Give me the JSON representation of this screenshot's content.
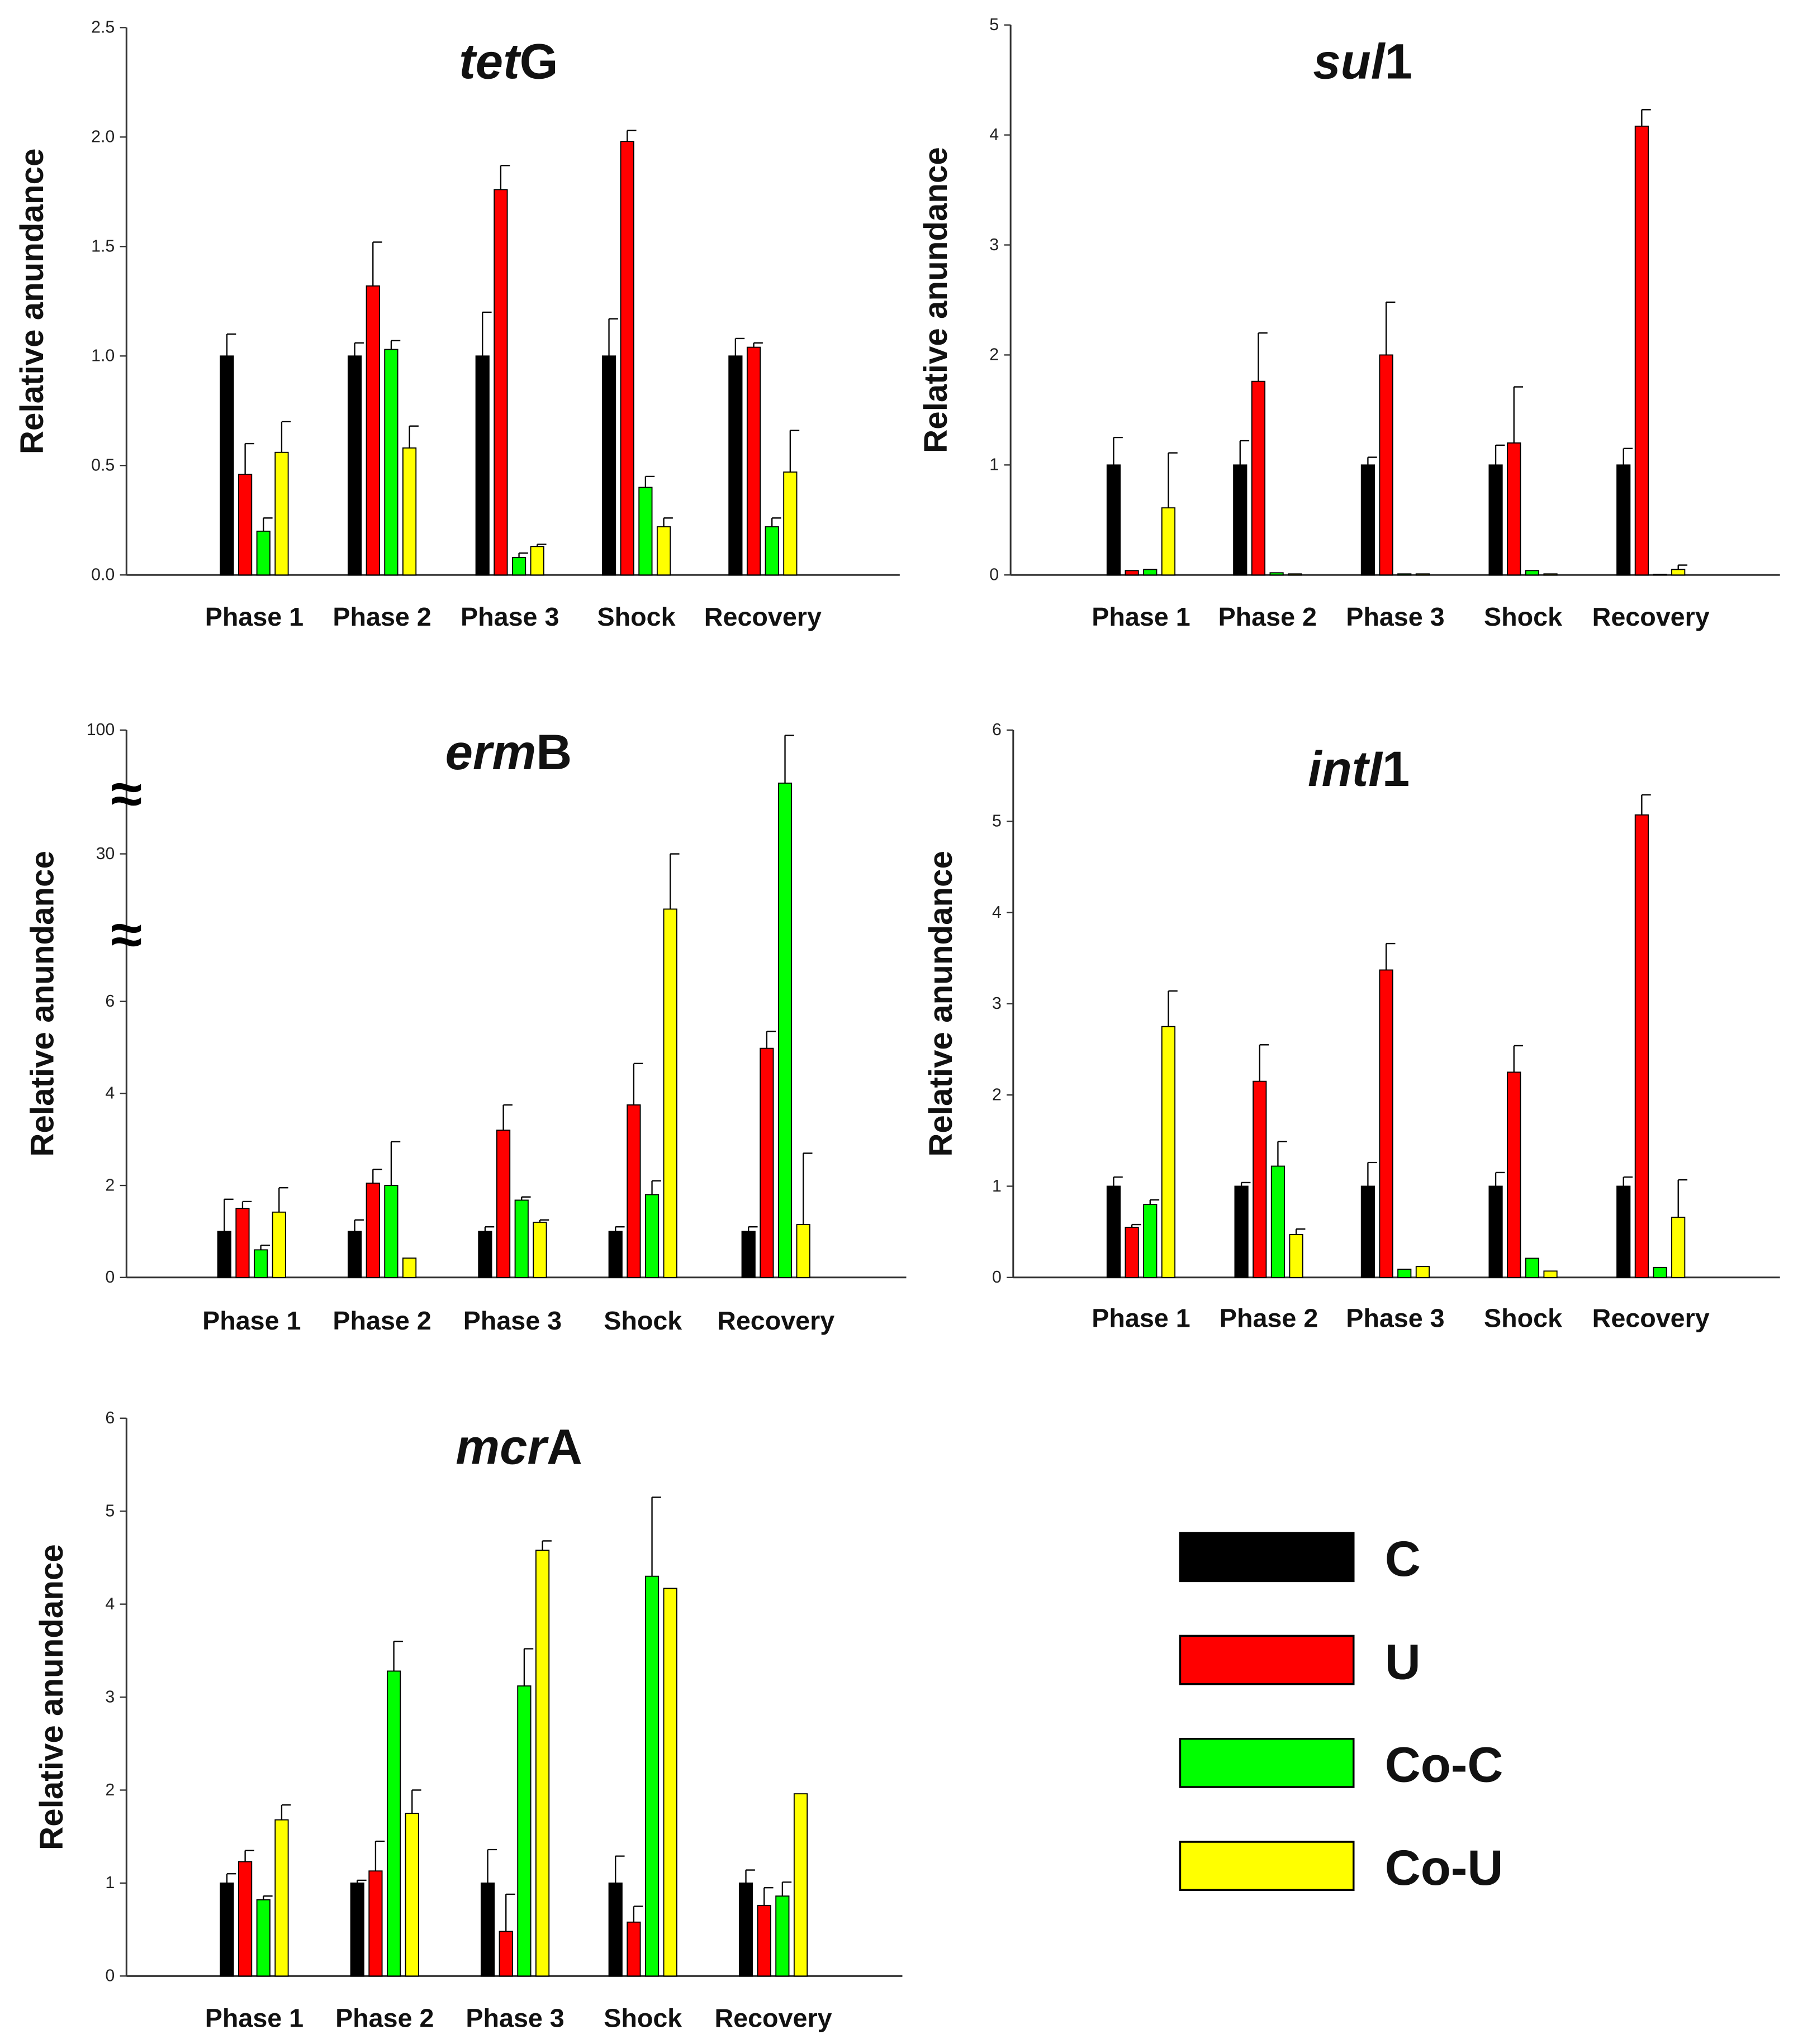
{
  "chart_data": [
    {
      "type": "bar",
      "title_italic": "tet",
      "title_rest": "G",
      "ylabel": "Relative anundance",
      "categories": [
        "Phase 1",
        "Phase 2",
        "Phase 3",
        "Shock",
        "Recovery"
      ],
      "ylim": [
        0,
        2.5
      ],
      "yticks": [
        "0.0",
        "0.5",
        "1.0",
        "1.5",
        "2.0",
        "2.5"
      ],
      "ytick_values": [
        0,
        0.5,
        1,
        1.5,
        2,
        2.5
      ],
      "series": [
        {
          "name": "C",
          "values": [
            1,
            1,
            1,
            1,
            1
          ],
          "err_top": [
            1.1,
            1.06,
            1.2,
            1.17,
            1.08
          ]
        },
        {
          "name": "U",
          "values": [
            0.46,
            1.32,
            1.76,
            1.98,
            1.04
          ],
          "err_top": [
            0.6,
            1.52,
            1.87,
            2.03,
            1.06
          ]
        },
        {
          "name": "Co-C",
          "values": [
            0.2,
            1.03,
            0.08,
            0.4,
            0.22
          ],
          "err_top": [
            0.26,
            1.07,
            0.1,
            0.45,
            0.26
          ]
        },
        {
          "name": "Co-U",
          "values": [
            0.56,
            0.58,
            0.13,
            0.22,
            0.47
          ],
          "err_top": [
            0.7,
            0.68,
            0.14,
            0.26,
            0.66
          ]
        }
      ]
    },
    {
      "type": "bar",
      "title_italic": "sul",
      "title_rest": "1",
      "ylabel": "Relative anundance",
      "categories": [
        "Phase 1",
        "Phase 2",
        "Phase 3",
        "Shock",
        "Recovery"
      ],
      "ylim": [
        0,
        5
      ],
      "yticks": [
        "0",
        "1",
        "2",
        "3",
        "4",
        "5"
      ],
      "ytick_values": [
        0,
        1,
        2,
        3,
        4,
        5
      ],
      "series": [
        {
          "name": "C",
          "values": [
            1,
            1,
            1,
            1,
            1
          ],
          "err_top": [
            1.25,
            1.22,
            1.07,
            1.18,
            1.15
          ]
        },
        {
          "name": "U",
          "values": [
            0.04,
            1.76,
            2.0,
            1.2,
            4.08
          ],
          "err_top": [
            0.04,
            2.2,
            2.48,
            1.71,
            4.23
          ]
        },
        {
          "name": "Co-C",
          "values": [
            0.05,
            0.02,
            0.01,
            0.04,
            0.0
          ],
          "err_top": [
            0.05,
            0.02,
            0.01,
            0.04,
            0.0
          ]
        },
        {
          "name": "Co-U",
          "values": [
            0.61,
            0.01,
            0.01,
            0.01,
            0.05
          ],
          "err_top": [
            1.11,
            0.01,
            0.01,
            0.01,
            0.09
          ]
        }
      ]
    },
    {
      "type": "bar",
      "title_italic": "erm",
      "title_rest": "B",
      "ylabel": "Relative anundance",
      "categories": [
        "Phase 1",
        "Phase 2",
        "Phase 3",
        "Shock",
        "Recovery"
      ],
      "ylim": [
        0,
        100
      ],
      "axis_break": true,
      "yticks": [
        "0",
        "2",
        "4",
        "6",
        "30",
        "100"
      ],
      "ytick_values": [
        0,
        2,
        4,
        6,
        30,
        100
      ],
      "series": [
        {
          "name": "C",
          "values": [
            1,
            1,
            1,
            1,
            1
          ],
          "err_top": [
            1.7,
            1.25,
            1.1,
            1.1,
            1.1
          ]
        },
        {
          "name": "U",
          "values": [
            1.5,
            2.05,
            3.2,
            3.75,
            4.98
          ],
          "err_top": [
            1.65,
            2.35,
            3.75,
            4.65,
            5.35
          ]
        },
        {
          "name": "Co-C",
          "values": [
            0.6,
            2.0,
            1.68,
            1.8,
            70
          ],
          "err_top": [
            0.7,
            2.95,
            1.75,
            2.1,
            97
          ]
        },
        {
          "name": "Co-U",
          "values": [
            1.42,
            0.42,
            1.2,
            21,
            1.15
          ],
          "err_top": [
            1.95,
            0.42,
            1.25,
            30,
            2.7
          ]
        }
      ]
    },
    {
      "type": "bar",
      "title_italic": "intI",
      "title_rest": "1",
      "ylabel": "Relative anundance",
      "categories": [
        "Phase 1",
        "Phase 2",
        "Phase 3",
        "Shock",
        "Recovery"
      ],
      "ylim": [
        0,
        6
      ],
      "yticks": [
        "0",
        "1",
        "2",
        "3",
        "4",
        "5",
        "6"
      ],
      "ytick_values": [
        0,
        1,
        2,
        3,
        4,
        5,
        6
      ],
      "series": [
        {
          "name": "C",
          "values": [
            1,
            1,
            1,
            1,
            1
          ],
          "err_top": [
            1.1,
            1.04,
            1.26,
            1.15,
            1.1
          ]
        },
        {
          "name": "U",
          "values": [
            0.55,
            2.15,
            3.37,
            2.25,
            5.07
          ],
          "err_top": [
            0.58,
            2.55,
            3.66,
            2.54,
            5.29
          ]
        },
        {
          "name": "Co-C",
          "values": [
            0.8,
            1.22,
            0.09,
            0.21,
            0.11
          ],
          "err_top": [
            0.85,
            1.49,
            0.09,
            0.21,
            0.11
          ]
        },
        {
          "name": "Co-U",
          "values": [
            2.75,
            0.47,
            0.12,
            0.07,
            0.66
          ],
          "err_top": [
            3.14,
            0.53,
            0.12,
            0.07,
            1.07
          ]
        }
      ]
    },
    {
      "type": "bar",
      "title_italic": "mcr",
      "title_rest": "A",
      "ylabel": "Relative anundance",
      "categories": [
        "Phase 1",
        "Phase 2",
        "Phase 3",
        "Shock",
        "Recovery"
      ],
      "ylim": [
        0,
        6
      ],
      "yticks": [
        "0",
        "1",
        "2",
        "3",
        "4",
        "5",
        "6"
      ],
      "ytick_values": [
        0,
        1,
        2,
        3,
        4,
        5,
        6
      ],
      "series": [
        {
          "name": "C",
          "values": [
            1,
            1,
            1,
            1,
            1
          ],
          "err_top": [
            1.1,
            1.03,
            1.36,
            1.29,
            1.14
          ]
        },
        {
          "name": "U",
          "values": [
            1.23,
            1.13,
            0.48,
            0.58,
            0.76
          ],
          "err_top": [
            1.35,
            1.45,
            0.88,
            0.75,
            0.95
          ]
        },
        {
          "name": "Co-C",
          "values": [
            0.82,
            3.28,
            3.12,
            4.3,
            0.86
          ],
          "err_top": [
            0.86,
            3.6,
            3.52,
            5.15,
            1.01
          ]
        },
        {
          "name": "Co-U",
          "values": [
            1.68,
            1.75,
            4.58,
            4.17,
            1.96
          ],
          "err_top": [
            1.84,
            2.0,
            4.68,
            4.17,
            1.96
          ]
        }
      ]
    }
  ],
  "legend": [
    {
      "label": "C",
      "color": "#000000"
    },
    {
      "label": "U",
      "color": "#ff0000"
    },
    {
      "label": "Co-C",
      "color": "#00ff00"
    },
    {
      "label": "Co-U",
      "color": "#ffff00"
    }
  ],
  "break_symbol": "≈"
}
